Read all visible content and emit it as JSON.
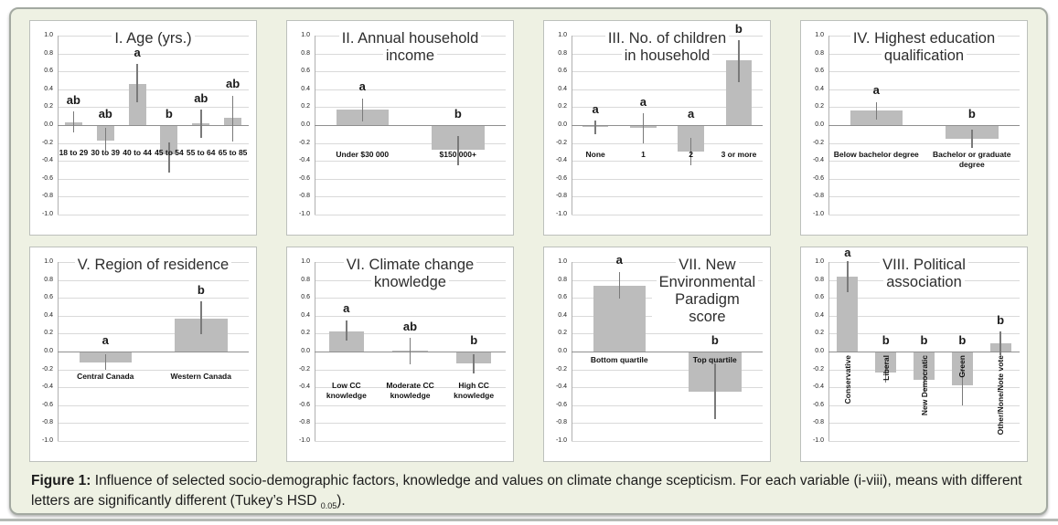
{
  "colors": {
    "figure_bg": "#eef1e3",
    "box_border": "#a3a9a1",
    "panel_border": "#bcc0bc",
    "bar": "#bcbcbc",
    "error_bar": "#7a7a7a",
    "gridline": "#d9d9d9",
    "zero_line": "#8f8f8f",
    "axis_line": "#b0b0b0",
    "bottom_rule": "#b5bab5"
  },
  "caption": {
    "prefix": "Figure 1:",
    "body": " Influence of selected socio-demographic factors, knowledge and values on climate change scepticism. For each variable (i-viii), means with different letters are significantly different (Tukey’s HSD ",
    "subscript": "0.05",
    "suffix": ")."
  },
  "chart_data": [
    {
      "type": "bar",
      "numeral": "I",
      "title_lines": [
        "I. Age (yrs.)"
      ],
      "categories": [
        "18 to 29",
        "30 to 39",
        "40 to 44",
        "45 to 54",
        "55 to 64",
        "65 to 85"
      ],
      "values": [
        0.03,
        -0.17,
        0.46,
        -0.33,
        0.02,
        0.08
      ],
      "err_low": [
        -0.08,
        -0.3,
        0.26,
        -0.53,
        -0.14,
        -0.18
      ],
      "err_high": [
        0.15,
        -0.03,
        0.68,
        -0.19,
        0.17,
        0.33
      ],
      "letters": [
        "ab",
        "ab",
        "a",
        "b",
        "ab",
        "ab"
      ],
      "ylim": [
        -1.0,
        1.0
      ],
      "ytick_step": 0.2,
      "grid": true,
      "title_pos": "center",
      "label_top_y": -0.25,
      "labels_rotated": false
    },
    {
      "type": "bar",
      "numeral": "II",
      "title_lines": [
        "II. Annual household",
        "income"
      ],
      "categories": [
        "Under $30 000",
        "$150 000+"
      ],
      "values": [
        0.17,
        -0.28
      ],
      "err_low": [
        0.04,
        -0.45
      ],
      "err_high": [
        0.3,
        -0.12
      ],
      "letters": [
        "a",
        "b"
      ],
      "ylim": [
        -1.0,
        1.0
      ],
      "ytick_step": 0.2,
      "grid": true,
      "title_pos": "center",
      "label_top_y": -0.28,
      "labels_rotated": false
    },
    {
      "type": "bar",
      "numeral": "III",
      "title_lines": [
        "III. No. of children",
        "in household"
      ],
      "categories": [
        "None",
        "1",
        "2",
        "3 or more"
      ],
      "values": [
        -0.015,
        -0.03,
        -0.3,
        0.72
      ],
      "err_low": [
        -0.1,
        -0.2,
        -0.45,
        0.48
      ],
      "err_high": [
        0.05,
        0.13,
        -0.14,
        0.95
      ],
      "letters": [
        "a",
        "a",
        "a",
        "b"
      ],
      "ylim": [
        -1.0,
        1.0
      ],
      "ytick_step": 0.2,
      "grid": true,
      "title_pos": "center",
      "label_top_y": -0.28,
      "labels_rotated": false
    },
    {
      "type": "bar",
      "numeral": "IV",
      "title_lines": [
        "IV. Highest education",
        "qualification"
      ],
      "categories": [
        "Below bachelor degree",
        "Bachelor or graduate\ndegree"
      ],
      "values": [
        0.16,
        -0.15
      ],
      "err_low": [
        0.06,
        -0.26
      ],
      "err_high": [
        0.26,
        -0.05
      ],
      "letters": [
        "a",
        "b"
      ],
      "ylim": [
        -1.0,
        1.0
      ],
      "ytick_step": 0.2,
      "grid": true,
      "title_pos": "center",
      "label_top_y": -0.28,
      "labels_rotated": false
    },
    {
      "type": "bar",
      "numeral": "V",
      "title_lines": [
        "V. Region of residence"
      ],
      "categories": [
        "Central Canada",
        "Western Canada"
      ],
      "values": [
        -0.12,
        0.37
      ],
      "err_low": [
        -0.21,
        0.19
      ],
      "err_high": [
        -0.03,
        0.56
      ],
      "letters": [
        "a",
        "b"
      ],
      "ylim": [
        -1.0,
        1.0
      ],
      "ytick_step": 0.2,
      "grid": true,
      "title_pos": "center",
      "label_top_y": -0.22,
      "labels_rotated": false
    },
    {
      "type": "bar",
      "numeral": "VI",
      "title_lines": [
        "VI. Climate change",
        "knowledge"
      ],
      "categories": [
        "Low CC\nknowledge",
        "Moderate CC\nknowledge",
        "High CC\nknowledge"
      ],
      "values": [
        0.23,
        0.01,
        -0.13
      ],
      "err_low": [
        0.12,
        -0.14,
        -0.25
      ],
      "err_high": [
        0.35,
        0.15,
        -0.03
      ],
      "letters": [
        "a",
        "ab",
        "b"
      ],
      "ylim": [
        -1.0,
        1.0
      ],
      "ytick_step": 0.2,
      "grid": true,
      "title_pos": "center",
      "label_top_y": -0.33,
      "labels_rotated": false
    },
    {
      "type": "bar",
      "numeral": "VII",
      "title_lines": [
        "VII. New",
        "Environmental",
        "Paradigm score"
      ],
      "categories": [
        "Bottom quartile",
        "Top quartile"
      ],
      "values": [
        0.74,
        -0.45
      ],
      "err_low": [
        0.59,
        -0.76
      ],
      "err_high": [
        0.89,
        -0.13
      ],
      "letters": [
        "a",
        "b"
      ],
      "ylim": [
        -1.0,
        1.0
      ],
      "ytick_step": 0.2,
      "grid": true,
      "title_pos": "right",
      "label_top_y": -0.04,
      "labels_rotated": false
    },
    {
      "type": "bar",
      "numeral": "VIII",
      "title_lines": [
        "VIII. Political",
        "association"
      ],
      "categories": [
        "Conservative",
        "Liberal",
        "New Democratic",
        "Green",
        "Other/None/Note vote"
      ],
      "values": [
        0.84,
        -0.23,
        -0.32,
        -0.38,
        0.09
      ],
      "err_low": [
        0.66,
        -0.35,
        -0.45,
        -0.6,
        -0.04
      ],
      "err_high": [
        1.01,
        -0.1,
        -0.2,
        -0.17,
        0.22
      ],
      "letters": [
        "a",
        "b",
        "b",
        "b",
        "b"
      ],
      "ylim": [
        -1.0,
        1.0
      ],
      "ytick_step": 0.2,
      "grid": true,
      "title_pos": "center",
      "label_top_y": -0.04,
      "labels_rotated": true
    }
  ]
}
